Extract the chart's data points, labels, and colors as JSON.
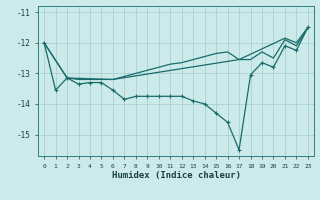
{
  "xlabel": "Humidex (Indice chaleur)",
  "bg_color": "#cceaea",
  "grid_color": "#aad0d0",
  "line_color": "#1a6b6b",
  "xlim": [
    -0.5,
    23.5
  ],
  "ylim": [
    -15.7,
    -10.8
  ],
  "yticks": [
    -15,
    -14,
    -13,
    -12,
    -11
  ],
  "xticks": [
    0,
    1,
    2,
    3,
    4,
    5,
    6,
    7,
    8,
    9,
    10,
    11,
    12,
    13,
    14,
    15,
    16,
    17,
    18,
    19,
    20,
    21,
    22,
    23
  ],
  "line1_x": [
    0,
    1,
    2,
    3,
    4,
    5,
    6,
    7,
    8,
    9,
    10,
    11,
    12,
    13,
    14,
    15,
    16,
    17,
    18,
    19,
    20,
    21,
    22,
    23
  ],
  "line1_y": [
    -12.0,
    -13.55,
    -13.15,
    -13.35,
    -13.3,
    -13.3,
    -13.55,
    -13.85,
    -13.75,
    -13.75,
    -13.75,
    -13.75,
    -13.75,
    -13.9,
    -14.0,
    -14.3,
    -14.6,
    -15.5,
    -13.05,
    -12.65,
    -12.8,
    -12.1,
    -12.25,
    -11.5
  ],
  "line2_x": [
    0,
    2,
    3,
    4,
    5,
    6,
    7,
    8,
    9,
    10,
    11,
    12,
    13,
    14,
    15,
    16,
    17,
    18,
    19,
    20,
    21,
    22,
    23
  ],
  "line2_y": [
    -12.0,
    -13.15,
    -13.2,
    -13.2,
    -13.2,
    -13.2,
    -13.1,
    -13.0,
    -12.9,
    -12.8,
    -12.7,
    -12.65,
    -12.55,
    -12.45,
    -12.35,
    -12.3,
    -12.55,
    -12.55,
    -12.3,
    -12.5,
    -11.9,
    -12.1,
    -11.5
  ],
  "line3_x": [
    0,
    2,
    6,
    17,
    21,
    22,
    23
  ],
  "line3_y": [
    -12.0,
    -13.15,
    -13.2,
    -12.55,
    -11.85,
    -12.0,
    -11.5
  ]
}
